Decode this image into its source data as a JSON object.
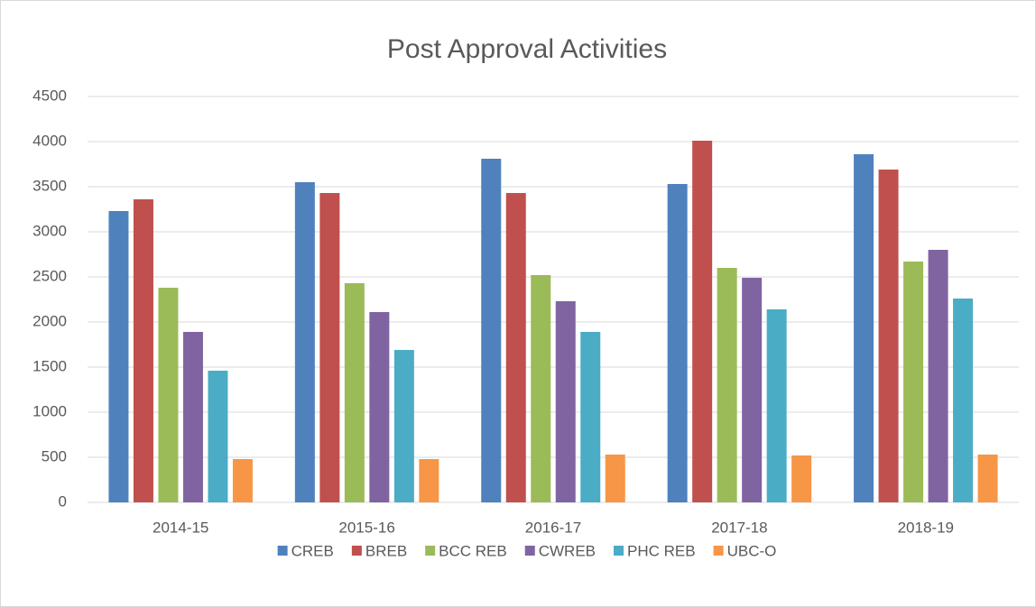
{
  "chart_data": {
    "type": "bar",
    "title": "Post Approval Activities",
    "categories": [
      "2014-15",
      "2015-16",
      "2016-17",
      "2017-18",
      "2018-19"
    ],
    "series": [
      {
        "name": "CREB",
        "color": "#4F81BD",
        "values": [
          3230,
          3550,
          3810,
          3530,
          3860
        ]
      },
      {
        "name": "BREB",
        "color": "#C0504D",
        "values": [
          3360,
          3430,
          3430,
          4010,
          3690
        ]
      },
      {
        "name": "BCC REB",
        "color": "#9BBB59",
        "values": [
          2380,
          2430,
          2520,
          2600,
          2670
        ]
      },
      {
        "name": "CWREB",
        "color": "#8064A2",
        "values": [
          1890,
          2110,
          2230,
          2490,
          2800
        ]
      },
      {
        "name": "PHC REB",
        "color": "#4BACC6",
        "values": [
          1460,
          1690,
          1890,
          2140,
          2260
        ]
      },
      {
        "name": "UBC-O",
        "color": "#F79646",
        "values": [
          480,
          480,
          530,
          520,
          530
        ]
      }
    ],
    "ylim": [
      0,
      4500
    ],
    "yticks": [
      0,
      500,
      1000,
      1500,
      2000,
      2500,
      3000,
      3500,
      4000,
      4500
    ],
    "grid": true,
    "legend": "bottom"
  }
}
